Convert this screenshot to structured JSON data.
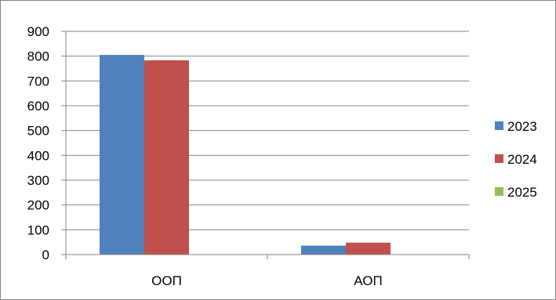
{
  "chart_data": {
    "type": "bar",
    "title": "",
    "xlabel": "",
    "ylabel": "",
    "categories": [
      "ООП",
      "АОП"
    ],
    "series": [
      {
        "name": "2023",
        "values": [
          805,
          36
        ],
        "color": "#4F81BD"
      },
      {
        "name": "2024",
        "values": [
          783,
          48
        ],
        "color": "#C0504D"
      },
      {
        "name": "2025",
        "values": [
          0,
          0
        ],
        "color": "#9BBB59"
      }
    ],
    "ylim": [
      0,
      900
    ],
    "yticks": [
      0,
      100,
      200,
      300,
      400,
      500,
      600,
      700,
      800,
      900
    ],
    "grid": true,
    "legend": "right"
  }
}
